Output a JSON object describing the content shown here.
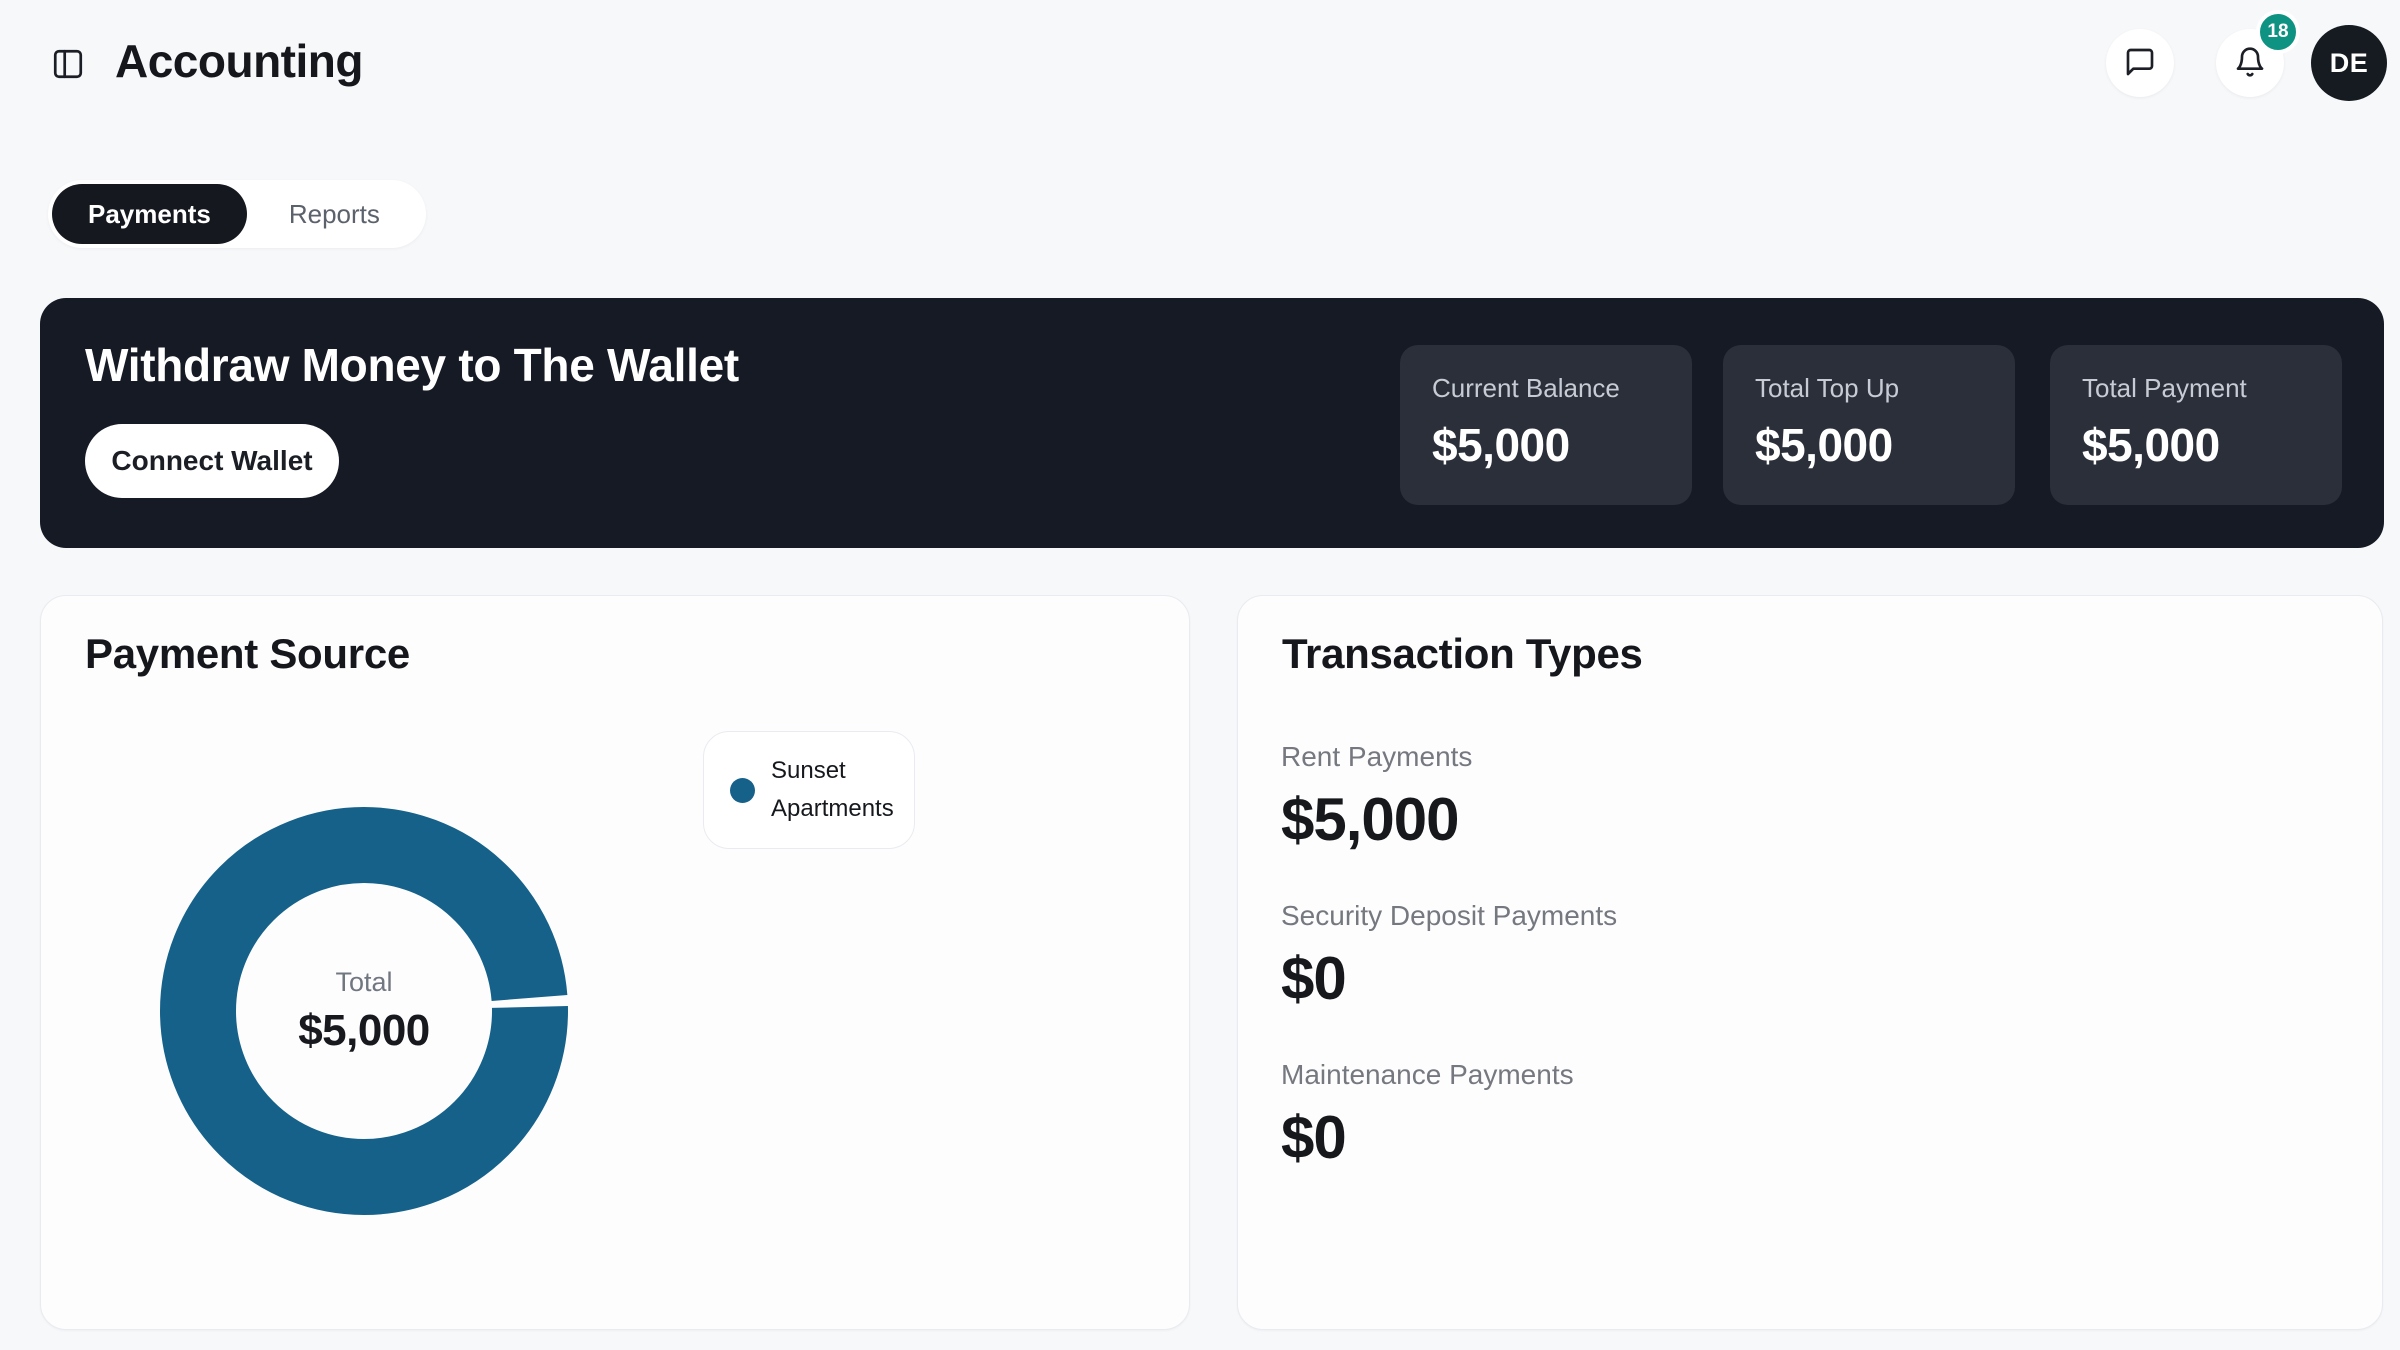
{
  "header": {
    "title": "Accounting",
    "notification_count": "18",
    "avatar_initials": "DE"
  },
  "tabs": {
    "payments_label": "Payments",
    "reports_label": "Reports",
    "active": "Payments"
  },
  "banner": {
    "title": "Withdraw Money to The Wallet",
    "button_label": "Connect Wallet",
    "stats": [
      {
        "label": "Current Balance",
        "value": "$5,000"
      },
      {
        "label": "Total Top Up",
        "value": "$5,000"
      },
      {
        "label": "Total Payment",
        "value": "$5,000"
      }
    ]
  },
  "payment_source": {
    "title": "Payment Source"
  },
  "chart_data": {
    "type": "pie",
    "title": "Payment Source",
    "donut": true,
    "series": [
      {
        "name": "Sunset Apartments",
        "value": 5000,
        "color": "#15618a"
      }
    ],
    "center_label": "Total",
    "center_value": "$5,000",
    "legend_position": "right"
  },
  "transaction_types": {
    "title": "Transaction Types",
    "rows": [
      {
        "label": "Rent Payments",
        "value": "$5,000"
      },
      {
        "label": "Security Deposit Payments",
        "value": "$0"
      },
      {
        "label": "Maintenance Payments",
        "value": "$0"
      }
    ]
  },
  "colors": {
    "page_bg": "#f7f8fa",
    "banner_bg": "#161a24",
    "stat_card_bg": "#2a2f3a",
    "active_tab_bg": "#15181f",
    "badge": "#0e9382",
    "avatar_bg": "#161a21",
    "donut": "#15618a",
    "card_border": "#e9ebf0"
  }
}
